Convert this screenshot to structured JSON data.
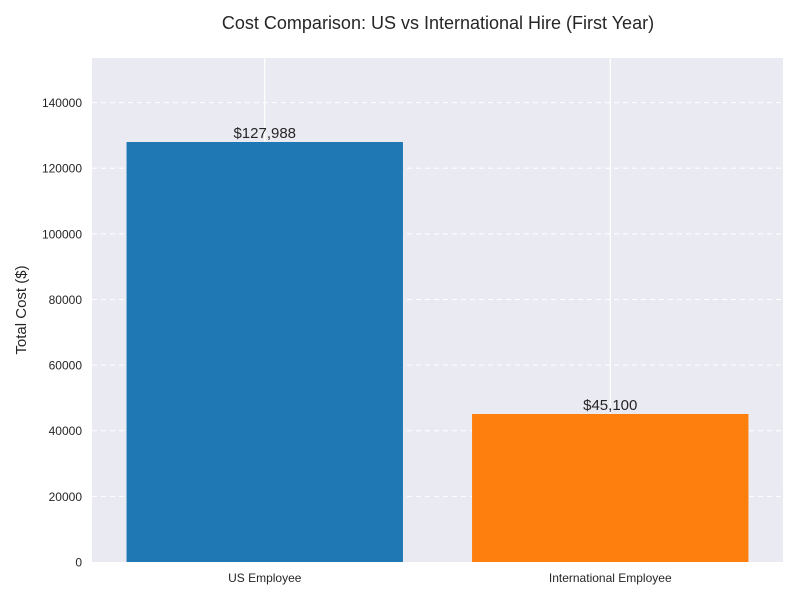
{
  "chart_data": {
    "type": "bar",
    "title": "Cost Comparison: US vs International Hire (First Year)",
    "xlabel": "",
    "ylabel": "Total Cost ($)",
    "categories": [
      "US Employee",
      "International Employee"
    ],
    "values": [
      127988,
      45100
    ],
    "value_labels": [
      "$127,988",
      "$45,100"
    ],
    "colors": [
      "#1f77b4",
      "#ff7f0e"
    ],
    "ylim": [
      0,
      153586
    ],
    "yticks": [
      0,
      20000,
      40000,
      60000,
      80000,
      100000,
      120000,
      140000
    ],
    "ytick_labels": [
      "0",
      "20000",
      "40000",
      "60000",
      "80000",
      "100000",
      "120000",
      "140000"
    ],
    "grid": true,
    "grid_style": "y dashed, x solid",
    "background_color": "#eaeaf2"
  }
}
